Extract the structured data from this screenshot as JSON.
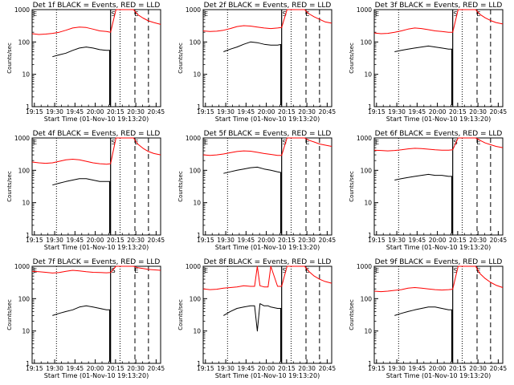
{
  "colors": {
    "events": "#000000",
    "lld": "#ff0000",
    "axes": "#000000",
    "background": "#ffffff"
  },
  "common": {
    "xlabel": "Start Time (01-Nov-10 19:13:20)",
    "ylabel": "Counts/sec",
    "xticks": [
      "19:15",
      "19:30",
      "19:45",
      "20:00",
      "20:15",
      "20:30",
      "20:45"
    ],
    "yticks": [
      "1",
      "10",
      "100",
      "1000"
    ]
  },
  "chart_data": [
    {
      "type": "line",
      "title": "Det 1f BLACK = Events, RED = LLD",
      "xlabel": "Start Time (01-Nov-10 19:13:20)",
      "ylabel": "Counts/sec",
      "x_unit": "minutes after 19:13:20",
      "xlim": [
        0,
        95
      ],
      "ylim": [
        1,
        1000
      ],
      "yscale": "log",
      "markers": {
        "dotted": [
          18,
          65
        ],
        "dashed": [
          76,
          86
        ],
        "flag_S_x": 58,
        "flag_E_x": 75
      },
      "series": [
        {
          "name": "Events",
          "color": "#000000",
          "x": [
            15,
            20,
            25,
            30,
            35,
            40,
            45,
            50,
            55,
            58
          ],
          "y": [
            35,
            40,
            45,
            55,
            65,
            70,
            65,
            58,
            55,
            55
          ]
        },
        {
          "name": "LLD",
          "color": "#ff0000",
          "x": [
            0,
            5,
            10,
            15,
            20,
            25,
            30,
            35,
            40,
            45,
            50,
            55,
            58,
            62,
            66,
            70,
            75,
            78,
            82,
            86,
            90,
            95
          ],
          "y": [
            180,
            170,
            175,
            185,
            200,
            230,
            270,
            290,
            280,
            250,
            220,
            210,
            200,
            1000,
            1000,
            1000,
            1000,
            700,
            550,
            450,
            400,
            350
          ]
        }
      ]
    },
    {
      "type": "line",
      "title": "Det 2f BLACK = Events, RED = LLD",
      "xlabel": "Start Time (01-Nov-10 19:13:20)",
      "ylabel": "Counts/sec",
      "x_unit": "minutes after 19:13:20",
      "xlim": [
        0,
        95
      ],
      "ylim": [
        1,
        1000
      ],
      "yscale": "log",
      "markers": {
        "dotted": [
          18,
          65
        ],
        "dashed": [
          76,
          86
        ],
        "flag_S_x": 58,
        "flag_E_x": 75
      },
      "series": [
        {
          "name": "Events",
          "color": "#000000",
          "x": [
            15,
            20,
            25,
            30,
            35,
            40,
            45,
            50,
            55,
            58
          ],
          "y": [
            50,
            60,
            70,
            85,
            100,
            95,
            85,
            80,
            80,
            85
          ]
        },
        {
          "name": "LLD",
          "color": "#ff0000",
          "x": [
            0,
            5,
            10,
            15,
            20,
            25,
            30,
            35,
            40,
            45,
            50,
            55,
            58,
            62,
            66,
            70,
            75,
            78,
            82,
            86,
            90,
            95
          ],
          "y": [
            220,
            210,
            215,
            230,
            260,
            300,
            320,
            310,
            290,
            270,
            260,
            270,
            280,
            1000,
            1000,
            1000,
            1000,
            750,
            600,
            500,
            420,
            380
          ]
        }
      ]
    },
    {
      "type": "line",
      "title": "Det 3f BLACK = Events, RED = LLD",
      "xlabel": "Start Time (01-Nov-10 19:13:20)",
      "ylabel": "Counts/sec",
      "x_unit": "minutes after 19:13:20",
      "xlim": [
        0,
        95
      ],
      "ylim": [
        1,
        1000
      ],
      "yscale": "log",
      "markers": {
        "dotted": [
          18,
          65
        ],
        "dashed": [
          76,
          86
        ],
        "flag_S_x": 58,
        "flag_E_x": 75
      },
      "series": [
        {
          "name": "Events",
          "color": "#000000",
          "x": [
            15,
            20,
            25,
            30,
            35,
            40,
            45,
            50,
            55,
            58
          ],
          "y": [
            50,
            55,
            60,
            65,
            70,
            75,
            70,
            65,
            60,
            60
          ]
        },
        {
          "name": "LLD",
          "color": "#ff0000",
          "x": [
            0,
            5,
            10,
            15,
            20,
            25,
            30,
            35,
            40,
            45,
            50,
            55,
            58,
            62,
            66,
            70,
            75,
            78,
            82,
            86,
            90,
            95
          ],
          "y": [
            190,
            180,
            185,
            200,
            220,
            250,
            270,
            260,
            240,
            220,
            210,
            200,
            200,
            1000,
            1000,
            1000,
            1000,
            720,
            560,
            460,
            400,
            360
          ]
        }
      ]
    },
    {
      "type": "line",
      "title": "Det 4f BLACK = Events, RED = LLD",
      "xlabel": "Start Time (01-Nov-10 19:13:20)",
      "ylabel": "Counts/sec",
      "x_unit": "minutes after 19:13:20",
      "xlim": [
        0,
        95
      ],
      "ylim": [
        1,
        1000
      ],
      "yscale": "log",
      "markers": {
        "dotted": [
          18,
          65
        ],
        "dashed": [
          76,
          86
        ],
        "flag_S_x": 58,
        "flag_E_x": 75
      },
      "series": [
        {
          "name": "Events",
          "color": "#000000",
          "x": [
            15,
            20,
            25,
            30,
            35,
            40,
            45,
            50,
            55,
            58
          ],
          "y": [
            35,
            40,
            45,
            50,
            55,
            55,
            50,
            45,
            45,
            45
          ]
        },
        {
          "name": "LLD",
          "color": "#ff0000",
          "x": [
            0,
            5,
            10,
            15,
            20,
            25,
            30,
            35,
            40,
            45,
            50,
            55,
            58,
            62,
            66,
            70,
            75,
            78,
            82,
            86,
            90,
            95
          ],
          "y": [
            180,
            170,
            165,
            170,
            190,
            210,
            220,
            210,
            190,
            170,
            160,
            155,
            160,
            1000,
            1000,
            1000,
            1000,
            650,
            480,
            380,
            330,
            300
          ]
        }
      ]
    },
    {
      "type": "line",
      "title": "Det 5f BLACK = Events, RED = LLD",
      "xlabel": "Start Time (01-Nov-10 19:13:20)",
      "ylabel": "Counts/sec",
      "x_unit": "minutes after 19:13:20",
      "xlim": [
        0,
        95
      ],
      "ylim": [
        1,
        1000
      ],
      "yscale": "log",
      "markers": {
        "dotted": [
          18,
          65
        ],
        "dashed": [
          76,
          86
        ],
        "flag_S_x": 58,
        "flag_E_x": 75
      },
      "series": [
        {
          "name": "Events",
          "color": "#000000",
          "x": [
            15,
            20,
            25,
            30,
            35,
            40,
            45,
            50,
            55,
            58
          ],
          "y": [
            80,
            90,
            100,
            110,
            120,
            125,
            110,
            100,
            90,
            85
          ]
        },
        {
          "name": "LLD",
          "color": "#ff0000",
          "x": [
            0,
            5,
            10,
            15,
            20,
            25,
            30,
            35,
            40,
            45,
            50,
            55,
            58,
            62,
            66,
            70,
            75,
            78,
            82,
            86,
            90,
            95
          ],
          "y": [
            300,
            290,
            300,
            320,
            350,
            380,
            400,
            390,
            360,
            330,
            310,
            290,
            290,
            1000,
            1000,
            1000,
            1000,
            850,
            750,
            650,
            600,
            550
          ]
        }
      ]
    },
    {
      "type": "line",
      "title": "Det 6f BLACK = Events, RED = LLD",
      "xlabel": "Start Time (01-Nov-10 19:13:20)",
      "ylabel": "Counts/sec",
      "x_unit": "minutes after 19:13:20",
      "xlim": [
        0,
        95
      ],
      "ylim": [
        1,
        1000
      ],
      "yscale": "log",
      "markers": {
        "dotted": [
          18,
          65
        ],
        "dashed": [
          76,
          86
        ],
        "flag_S_x": 58,
        "flag_E_x": 75
      },
      "series": [
        {
          "name": "Events",
          "color": "#000000",
          "x": [
            15,
            20,
            25,
            30,
            35,
            40,
            45,
            50,
            55,
            58
          ],
          "y": [
            50,
            55,
            60,
            65,
            70,
            75,
            70,
            70,
            65,
            65
          ]
        },
        {
          "name": "LLD",
          "color": "#ff0000",
          "x": [
            0,
            5,
            10,
            15,
            20,
            25,
            30,
            35,
            40,
            45,
            50,
            55,
            58,
            62,
            66,
            70,
            75,
            78,
            82,
            86,
            90,
            95
          ],
          "y": [
            420,
            410,
            400,
            410,
            430,
            460,
            480,
            470,
            450,
            430,
            420,
            420,
            430,
            1000,
            1000,
            1000,
            1000,
            850,
            700,
            620,
            550,
            500
          ]
        }
      ]
    },
    {
      "type": "line",
      "title": "Det 7f BLACK = Events, RED = LLD",
      "xlabel": "Start Time (01-Nov-10 19:13:20)",
      "ylabel": "Counts/sec",
      "x_unit": "minutes after 19:13:20",
      "xlim": [
        0,
        95
      ],
      "ylim": [
        1,
        1000
      ],
      "yscale": "log",
      "markers": {
        "dotted": [
          18,
          65
        ],
        "dashed": [
          76,
          86
        ],
        "flag_S_x": 58,
        "flag_E_x": 75
      },
      "series": [
        {
          "name": "Events",
          "color": "#000000",
          "x": [
            15,
            20,
            25,
            30,
            35,
            40,
            45,
            50,
            55,
            58
          ],
          "y": [
            30,
            35,
            40,
            45,
            55,
            60,
            55,
            50,
            45,
            45
          ]
        },
        {
          "name": "LLD",
          "color": "#ff0000",
          "x": [
            0,
            5,
            10,
            15,
            20,
            25,
            30,
            35,
            40,
            45,
            50,
            55,
            58,
            62,
            66,
            70,
            75,
            78,
            82,
            86,
            90,
            95
          ],
          "y": [
            700,
            680,
            650,
            620,
            640,
            700,
            750,
            720,
            680,
            650,
            640,
            630,
            640,
            1000,
            1000,
            1000,
            1000,
            900,
            850,
            800,
            780,
            750
          ]
        }
      ]
    },
    {
      "type": "line",
      "title": "Det 8f BLACK = Events, RED = LLD",
      "xlabel": "Start Time (01-Nov-10 19:13:20)",
      "ylabel": "Counts/sec",
      "x_unit": "minutes after 19:13:20",
      "xlim": [
        0,
        95
      ],
      "ylim": [
        1,
        1000
      ],
      "yscale": "log",
      "markers": {
        "dotted": [
          18,
          65
        ],
        "dashed": [
          76,
          86
        ],
        "flag_S_x": 58,
        "flag_E_x": 75
      },
      "series": [
        {
          "name": "Events",
          "color": "#000000",
          "x": [
            15,
            20,
            25,
            30,
            35,
            38,
            40,
            42,
            45,
            48,
            50,
            55,
            58
          ],
          "y": [
            30,
            40,
            50,
            55,
            60,
            60,
            10,
            70,
            60,
            60,
            55,
            50,
            50
          ]
        },
        {
          "name": "LLD",
          "color": "#ff0000",
          "x": [
            0,
            5,
            10,
            15,
            20,
            25,
            30,
            35,
            38,
            40,
            42,
            45,
            48,
            50,
            55,
            58,
            62,
            66,
            70,
            75,
            78,
            82,
            86,
            90,
            95
          ],
          "y": [
            200,
            190,
            195,
            210,
            220,
            230,
            250,
            240,
            240,
            1000,
            250,
            230,
            230,
            1000,
            240,
            240,
            1000,
            1000,
            1000,
            1000,
            700,
            500,
            400,
            340,
            300
          ]
        }
      ]
    },
    {
      "type": "line",
      "title": "Det 9f BLACK = Events, RED = LLD",
      "xlabel": "Start Time (01-Nov-10 19:13:20)",
      "ylabel": "Counts/sec",
      "x_unit": "minutes after 19:13:20",
      "xlim": [
        0,
        95
      ],
      "ylim": [
        1,
        1000
      ],
      "yscale": "log",
      "markers": {
        "dotted": [
          18,
          65
        ],
        "dashed": [
          76,
          86
        ],
        "flag_S_x": 58,
        "flag_E_x": 75
      },
      "series": [
        {
          "name": "Events",
          "color": "#000000",
          "x": [
            15,
            20,
            25,
            30,
            35,
            40,
            45,
            50,
            55,
            58
          ],
          "y": [
            30,
            35,
            40,
            45,
            50,
            55,
            55,
            50,
            45,
            45
          ]
        },
        {
          "name": "LLD",
          "color": "#ff0000",
          "x": [
            0,
            5,
            10,
            15,
            20,
            25,
            30,
            35,
            40,
            45,
            50,
            55,
            58,
            62,
            66,
            70,
            75,
            78,
            82,
            86,
            90,
            95
          ],
          "y": [
            170,
            165,
            170,
            180,
            190,
            210,
            220,
            210,
            200,
            190,
            185,
            190,
            195,
            1000,
            1000,
            1000,
            1000,
            600,
            420,
            320,
            260,
            220
          ]
        }
      ]
    }
  ]
}
